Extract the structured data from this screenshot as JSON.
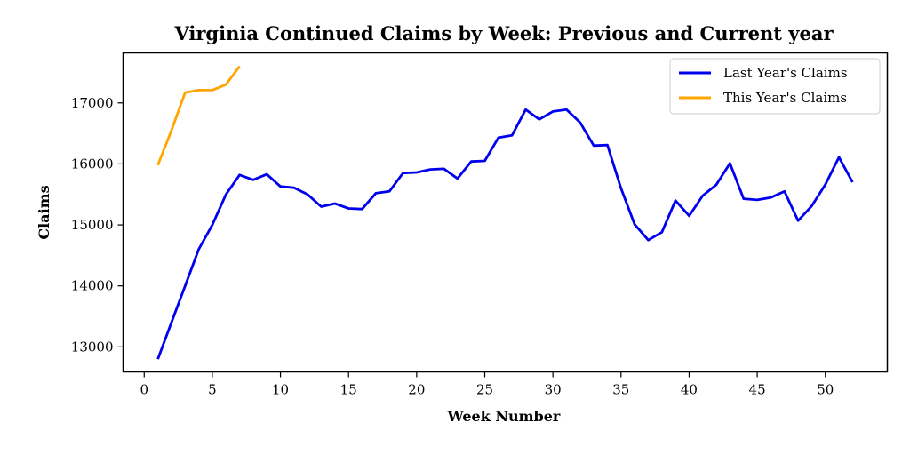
{
  "chart_data": {
    "type": "line",
    "title": "Virginia Continued Claims by Week: Previous and Current year",
    "xlabel": "Week Number",
    "ylabel": "Claims",
    "xlim": [
      -1.55,
      54.55
    ],
    "ylim": [
      12590,
      17820
    ],
    "xticks": [
      0,
      5,
      10,
      15,
      20,
      25,
      30,
      35,
      40,
      45,
      50
    ],
    "yticks": [
      13000,
      14000,
      15000,
      16000,
      17000
    ],
    "grid": false,
    "legend": "top-right",
    "series": [
      {
        "name": "Last Year's Claims",
        "color": "#0000ee",
        "x": [
          1,
          2,
          3,
          4,
          5,
          6,
          7,
          8,
          9,
          10,
          11,
          12,
          13,
          14,
          15,
          16,
          17,
          18,
          19,
          20,
          21,
          22,
          23,
          24,
          25,
          26,
          27,
          28,
          29,
          30,
          31,
          32,
          33,
          34,
          35,
          36,
          37,
          38,
          39,
          40,
          41,
          42,
          43,
          44,
          45,
          46,
          47,
          48,
          49,
          50,
          51,
          52
        ],
        "y": [
          12800,
          13400,
          14000,
          14600,
          15000,
          15500,
          15820,
          15740,
          15830,
          15630,
          15610,
          15500,
          15300,
          15350,
          15270,
          15260,
          15520,
          15550,
          15850,
          15860,
          15910,
          15920,
          15760,
          16040,
          16050,
          16430,
          16470,
          16890,
          16730,
          16860,
          16890,
          16680,
          16300,
          16310,
          15600,
          15010,
          14750,
          14880,
          15400,
          15150,
          15480,
          15660,
          16010,
          15430,
          15410,
          15450,
          15550,
          15070,
          15310,
          15660,
          16110,
          15700
        ]
      },
      {
        "name": "This Year's Claims",
        "color": "#ffa500",
        "x": [
          1,
          2,
          3,
          4,
          5,
          6,
          7
        ],
        "y": [
          15980,
          16550,
          17170,
          17210,
          17210,
          17300,
          17600
        ]
      }
    ]
  }
}
